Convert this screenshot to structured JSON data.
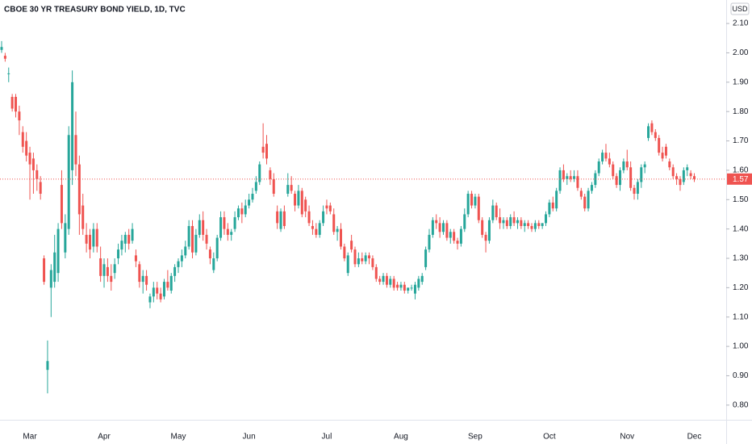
{
  "chart_data": {
    "type": "candlestick",
    "title": "CBOE 30 YR TREASURY BOND YIELD, 1D, TVC",
    "currency": "USD",
    "up_color": "#26a69a",
    "down_color": "#ef5350",
    "ylim": [
      0.75,
      2.18
    ],
    "yticks": [
      {
        "value": 0.8,
        "label": "0.80"
      },
      {
        "value": 0.9,
        "label": "0.90"
      },
      {
        "value": 1.0,
        "label": "1.00"
      },
      {
        "value": 1.1,
        "label": "1.10"
      },
      {
        "value": 1.2,
        "label": "1.20"
      },
      {
        "value": 1.3,
        "label": "1.30"
      },
      {
        "value": 1.4,
        "label": "1.40"
      },
      {
        "value": 1.5,
        "label": "1.50"
      },
      {
        "value": 1.6,
        "label": "1.60"
      },
      {
        "value": 1.7,
        "label": "1.70"
      },
      {
        "value": 1.8,
        "label": "1.80"
      },
      {
        "value": 1.9,
        "label": "1.90"
      },
      {
        "value": 2.0,
        "label": "2.00"
      },
      {
        "value": 2.1,
        "label": "2.10"
      }
    ],
    "last_price": 1.57,
    "categories": [
      null,
      null,
      null,
      null,
      null,
      null,
      null,
      null,
      "Mar",
      null,
      null,
      null,
      null,
      null,
      null,
      null,
      null,
      null,
      null,
      null,
      null,
      null,
      null,
      null,
      null,
      null,
      null,
      null,
      null,
      "Apr",
      null,
      null,
      null,
      null,
      null,
      null,
      null,
      null,
      null,
      null,
      null,
      null,
      null,
      null,
      null,
      null,
      null,
      null,
      null,
      null,
      "May",
      null,
      null,
      null,
      null,
      null,
      null,
      null,
      null,
      null,
      null,
      null,
      null,
      null,
      null,
      null,
      null,
      null,
      null,
      null,
      "Jun",
      null,
      null,
      null,
      null,
      null,
      null,
      null,
      null,
      null,
      null,
      null,
      null,
      null,
      null,
      null,
      null,
      null,
      null,
      null,
      null,
      null,
      "Jul",
      null,
      null,
      null,
      null,
      null,
      null,
      null,
      null,
      null,
      null,
      null,
      null,
      null,
      null,
      null,
      null,
      null,
      null,
      null,
      null,
      "Aug",
      null,
      null,
      null,
      null,
      null,
      null,
      null,
      null,
      null,
      null,
      null,
      null,
      null,
      null,
      null,
      null,
      null,
      null,
      null,
      null,
      "Sep",
      null,
      null,
      null,
      null,
      null,
      null,
      null,
      null,
      null,
      null,
      null,
      null,
      null,
      null,
      null,
      null,
      null,
      null,
      null,
      null,
      "Oct",
      null,
      null,
      null,
      null,
      null,
      null,
      null,
      null,
      null,
      null,
      null,
      null,
      null,
      null,
      null,
      null,
      null,
      null,
      null,
      null,
      null,
      "Nov",
      null,
      null,
      null,
      null,
      null,
      null,
      null,
      null,
      null,
      null,
      null,
      null,
      null,
      null,
      null,
      null,
      null,
      null,
      "Dec"
    ],
    "candles": [
      [
        2.01,
        2.04,
        2.0,
        2.02
      ],
      [
        1.99,
        2.0,
        1.97,
        1.98
      ],
      [
        1.93,
        1.95,
        1.9,
        1.93
      ],
      [
        1.85,
        1.86,
        1.8,
        1.81
      ],
      [
        1.85,
        1.86,
        1.78,
        1.8
      ],
      [
        1.8,
        1.82,
        1.72,
        1.77
      ],
      [
        1.73,
        1.75,
        1.66,
        1.68
      ],
      [
        1.7,
        1.73,
        1.63,
        1.65
      ],
      [
        1.66,
        1.68,
        1.5,
        1.62
      ],
      [
        1.64,
        1.66,
        1.52,
        1.6
      ],
      [
        1.6,
        1.62,
        1.53,
        1.57
      ],
      [
        1.56,
        1.58,
        1.5,
        1.52
      ],
      [
        1.3,
        1.31,
        1.21,
        1.22
      ],
      [
        0.92,
        1.02,
        0.84,
        0.95
      ],
      [
        1.2,
        1.28,
        1.1,
        1.26
      ],
      [
        1.22,
        1.38,
        1.2,
        1.32
      ],
      [
        1.25,
        1.42,
        1.22,
        1.4
      ],
      [
        1.55,
        1.6,
        1.4,
        1.42
      ],
      [
        1.32,
        1.45,
        1.3,
        1.42
      ],
      [
        1.4,
        1.75,
        1.38,
        1.72
      ],
      [
        1.6,
        1.94,
        1.55,
        1.9
      ],
      [
        1.72,
        1.8,
        1.58,
        1.62
      ],
      [
        1.62,
        1.65,
        1.38,
        1.45
      ],
      [
        1.48,
        1.52,
        1.38,
        1.4
      ],
      [
        1.38,
        1.42,
        1.32,
        1.35
      ],
      [
        1.38,
        1.4,
        1.3,
        1.33
      ],
      [
        1.34,
        1.42,
        1.32,
        1.4
      ],
      [
        1.4,
        1.42,
        1.32,
        1.34
      ],
      [
        1.3,
        1.34,
        1.22,
        1.24
      ],
      [
        1.24,
        1.3,
        1.2,
        1.28
      ],
      [
        1.27,
        1.3,
        1.22,
        1.24
      ],
      [
        1.24,
        1.28,
        1.19,
        1.22
      ],
      [
        1.25,
        1.3,
        1.23,
        1.28
      ],
      [
        1.3,
        1.35,
        1.28,
        1.33
      ],
      [
        1.33,
        1.38,
        1.31,
        1.36
      ],
      [
        1.35,
        1.39,
        1.32,
        1.38
      ],
      [
        1.38,
        1.4,
        1.33,
        1.35
      ],
      [
        1.36,
        1.42,
        1.35,
        1.4
      ],
      [
        1.31,
        1.33,
        1.27,
        1.29
      ],
      [
        1.28,
        1.29,
        1.2,
        1.22
      ],
      [
        1.22,
        1.26,
        1.18,
        1.24
      ],
      [
        1.24,
        1.26,
        1.19,
        1.21
      ],
      [
        1.15,
        1.18,
        1.13,
        1.17
      ],
      [
        1.17,
        1.22,
        1.15,
        1.2
      ],
      [
        1.2,
        1.22,
        1.16,
        1.18
      ],
      [
        1.18,
        1.2,
        1.15,
        1.16
      ],
      [
        1.17,
        1.23,
        1.16,
        1.22
      ],
      [
        1.22,
        1.26,
        1.19,
        1.2
      ],
      [
        1.19,
        1.25,
        1.18,
        1.24
      ],
      [
        1.24,
        1.28,
        1.22,
        1.27
      ],
      [
        1.27,
        1.3,
        1.25,
        1.29
      ],
      [
        1.29,
        1.33,
        1.27,
        1.31
      ],
      [
        1.31,
        1.36,
        1.3,
        1.34
      ],
      [
        1.34,
        1.43,
        1.33,
        1.41
      ],
      [
        1.41,
        1.43,
        1.3,
        1.32
      ],
      [
        1.32,
        1.4,
        1.31,
        1.38
      ],
      [
        1.38,
        1.45,
        1.37,
        1.43
      ],
      [
        1.43,
        1.46,
        1.36,
        1.38
      ],
      [
        1.38,
        1.4,
        1.33,
        1.35
      ],
      [
        1.33,
        1.34,
        1.28,
        1.3
      ],
      [
        1.26,
        1.32,
        1.25,
        1.3
      ],
      [
        1.3,
        1.38,
        1.29,
        1.37
      ],
      [
        1.37,
        1.46,
        1.36,
        1.44
      ],
      [
        1.44,
        1.46,
        1.38,
        1.4
      ],
      [
        1.4,
        1.42,
        1.36,
        1.38
      ],
      [
        1.38,
        1.4,
        1.36,
        1.39
      ],
      [
        1.4,
        1.46,
        1.39,
        1.44
      ],
      [
        1.44,
        1.48,
        1.43,
        1.47
      ],
      [
        1.47,
        1.49,
        1.42,
        1.45
      ],
      [
        1.45,
        1.5,
        1.44,
        1.48
      ],
      [
        1.48,
        1.52,
        1.47,
        1.5
      ],
      [
        1.5,
        1.54,
        1.49,
        1.52
      ],
      [
        1.53,
        1.58,
        1.52,
        1.56
      ],
      [
        1.56,
        1.63,
        1.55,
        1.62
      ],
      [
        1.68,
        1.76,
        1.64,
        1.66
      ],
      [
        1.69,
        1.72,
        1.62,
        1.64
      ],
      [
        1.6,
        1.61,
        1.55,
        1.57
      ],
      [
        1.57,
        1.59,
        1.51,
        1.52
      ],
      [
        1.46,
        1.48,
        1.4,
        1.42
      ],
      [
        1.4,
        1.47,
        1.39,
        1.46
      ],
      [
        1.46,
        1.48,
        1.4,
        1.41
      ],
      [
        1.52,
        1.59,
        1.51,
        1.55
      ],
      [
        1.55,
        1.58,
        1.52,
        1.53
      ],
      [
        1.52,
        1.53,
        1.46,
        1.48
      ],
      [
        1.48,
        1.55,
        1.47,
        1.53
      ],
      [
        1.53,
        1.54,
        1.44,
        1.45
      ],
      [
        1.5,
        1.51,
        1.44,
        1.46
      ],
      [
        1.46,
        1.48,
        1.41,
        1.42
      ],
      [
        1.41,
        1.43,
        1.38,
        1.4
      ],
      [
        1.4,
        1.42,
        1.37,
        1.38
      ],
      [
        1.38,
        1.43,
        1.37,
        1.42
      ],
      [
        1.42,
        1.48,
        1.41,
        1.46
      ],
      [
        1.48,
        1.5,
        1.45,
        1.47
      ],
      [
        1.48,
        1.49,
        1.45,
        1.46
      ],
      [
        1.45,
        1.47,
        1.38,
        1.39
      ],
      [
        1.39,
        1.41,
        1.36,
        1.4
      ],
      [
        1.4,
        1.42,
        1.33,
        1.34
      ],
      [
        1.34,
        1.35,
        1.29,
        1.3
      ],
      [
        1.25,
        1.32,
        1.24,
        1.31
      ],
      [
        1.36,
        1.38,
        1.32,
        1.33
      ],
      [
        1.33,
        1.34,
        1.27,
        1.28
      ],
      [
        1.28,
        1.32,
        1.27,
        1.3
      ],
      [
        1.3,
        1.32,
        1.28,
        1.29
      ],
      [
        1.29,
        1.32,
        1.28,
        1.31
      ],
      [
        1.31,
        1.32,
        1.28,
        1.3
      ],
      [
        1.3,
        1.31,
        1.26,
        1.27
      ],
      [
        1.27,
        1.28,
        1.22,
        1.23
      ],
      [
        1.23,
        1.24,
        1.21,
        1.22
      ],
      [
        1.22,
        1.25,
        1.21,
        1.24
      ],
      [
        1.24,
        1.25,
        1.2,
        1.21
      ],
      [
        1.21,
        1.24,
        1.2,
        1.23
      ],
      [
        1.23,
        1.24,
        1.19,
        1.2
      ],
      [
        1.21,
        1.22,
        1.19,
        1.2
      ],
      [
        1.2,
        1.22,
        1.19,
        1.21
      ],
      [
        1.21,
        1.22,
        1.18,
        1.19
      ],
      [
        1.19,
        1.2,
        1.18,
        1.2
      ],
      [
        1.2,
        1.21,
        1.19,
        1.2
      ],
      [
        1.18,
        1.22,
        1.16,
        1.21
      ],
      [
        1.2,
        1.24,
        1.19,
        1.23
      ],
      [
        1.22,
        1.25,
        1.21,
        1.24
      ],
      [
        1.27,
        1.34,
        1.26,
        1.33
      ],
      [
        1.33,
        1.4,
        1.32,
        1.38
      ],
      [
        1.38,
        1.44,
        1.37,
        1.43
      ],
      [
        1.43,
        1.45,
        1.4,
        1.42
      ],
      [
        1.42,
        1.44,
        1.37,
        1.39
      ],
      [
        1.39,
        1.43,
        1.38,
        1.42
      ],
      [
        1.42,
        1.43,
        1.36,
        1.37
      ],
      [
        1.37,
        1.4,
        1.35,
        1.39
      ],
      [
        1.39,
        1.4,
        1.35,
        1.36
      ],
      [
        1.36,
        1.37,
        1.33,
        1.35
      ],
      [
        1.35,
        1.41,
        1.34,
        1.4
      ],
      [
        1.4,
        1.47,
        1.39,
        1.45
      ],
      [
        1.45,
        1.53,
        1.44,
        1.52
      ],
      [
        1.52,
        1.53,
        1.47,
        1.48
      ],
      [
        1.48,
        1.52,
        1.47,
        1.51
      ],
      [
        1.51,
        1.52,
        1.42,
        1.43
      ],
      [
        1.43,
        1.44,
        1.37,
        1.38
      ],
      [
        1.38,
        1.39,
        1.32,
        1.36
      ],
      [
        1.36,
        1.44,
        1.35,
        1.43
      ],
      [
        1.43,
        1.5,
        1.42,
        1.48
      ],
      [
        1.48,
        1.49,
        1.43,
        1.44
      ],
      [
        1.44,
        1.47,
        1.4,
        1.42
      ],
      [
        1.42,
        1.44,
        1.4,
        1.43
      ],
      [
        1.43,
        1.44,
        1.4,
        1.41
      ],
      [
        1.41,
        1.45,
        1.4,
        1.44
      ],
      [
        1.44,
        1.46,
        1.41,
        1.42
      ],
      [
        1.42,
        1.44,
        1.4,
        1.43
      ],
      [
        1.43,
        1.44,
        1.4,
        1.41
      ],
      [
        1.41,
        1.43,
        1.39,
        1.42
      ],
      [
        1.42,
        1.43,
        1.4,
        1.41
      ],
      [
        1.41,
        1.42,
        1.39,
        1.4
      ],
      [
        1.4,
        1.43,
        1.39,
        1.42
      ],
      [
        1.42,
        1.43,
        1.4,
        1.41
      ],
      [
        1.41,
        1.42,
        1.4,
        1.42
      ],
      [
        1.42,
        1.46,
        1.41,
        1.45
      ],
      [
        1.45,
        1.5,
        1.44,
        1.49
      ],
      [
        1.49,
        1.51,
        1.46,
        1.47
      ],
      [
        1.47,
        1.54,
        1.46,
        1.53
      ],
      [
        1.53,
        1.61,
        1.52,
        1.6
      ],
      [
        1.6,
        1.62,
        1.56,
        1.57
      ],
      [
        1.57,
        1.59,
        1.55,
        1.58
      ],
      [
        1.58,
        1.6,
        1.56,
        1.57
      ],
      [
        1.57,
        1.6,
        1.56,
        1.58
      ],
      [
        1.58,
        1.6,
        1.53,
        1.54
      ],
      [
        1.53,
        1.54,
        1.5,
        1.51
      ],
      [
        1.51,
        1.52,
        1.46,
        1.47
      ],
      [
        1.47,
        1.54,
        1.46,
        1.53
      ],
      [
        1.53,
        1.56,
        1.52,
        1.55
      ],
      [
        1.55,
        1.6,
        1.54,
        1.59
      ],
      [
        1.59,
        1.64,
        1.58,
        1.63
      ],
      [
        1.63,
        1.67,
        1.62,
        1.66
      ],
      [
        1.66,
        1.69,
        1.63,
        1.64
      ],
      [
        1.64,
        1.66,
        1.61,
        1.62
      ],
      [
        1.62,
        1.63,
        1.57,
        1.58
      ],
      [
        1.58,
        1.59,
        1.54,
        1.55
      ],
      [
        1.55,
        1.61,
        1.53,
        1.6
      ],
      [
        1.6,
        1.64,
        1.59,
        1.63
      ],
      [
        1.63,
        1.67,
        1.6,
        1.61
      ],
      [
        1.61,
        1.63,
        1.53,
        1.54
      ],
      [
        1.54,
        1.55,
        1.5,
        1.52
      ],
      [
        1.52,
        1.57,
        1.5,
        1.56
      ],
      [
        1.56,
        1.62,
        1.54,
        1.61
      ],
      [
        1.61,
        1.63,
        1.59,
        1.62
      ],
      [
        1.71,
        1.76,
        1.7,
        1.75
      ],
      [
        1.76,
        1.77,
        1.72,
        1.73
      ],
      [
        1.73,
        1.74,
        1.7,
        1.71
      ],
      [
        1.71,
        1.72,
        1.65,
        1.66
      ],
      [
        1.66,
        1.68,
        1.63,
        1.64
      ],
      [
        1.68,
        1.69,
        1.64,
        1.65
      ],
      [
        1.63,
        1.64,
        1.6,
        1.61
      ],
      [
        1.61,
        1.62,
        1.57,
        1.58
      ],
      [
        1.58,
        1.59,
        1.55,
        1.57
      ],
      [
        1.57,
        1.58,
        1.53,
        1.55
      ],
      [
        1.56,
        1.61,
        1.55,
        1.6
      ],
      [
        1.6,
        1.62,
        1.58,
        1.61
      ],
      [
        1.59,
        1.6,
        1.57,
        1.58
      ],
      [
        1.58,
        1.59,
        1.56,
        1.57
      ]
    ]
  }
}
